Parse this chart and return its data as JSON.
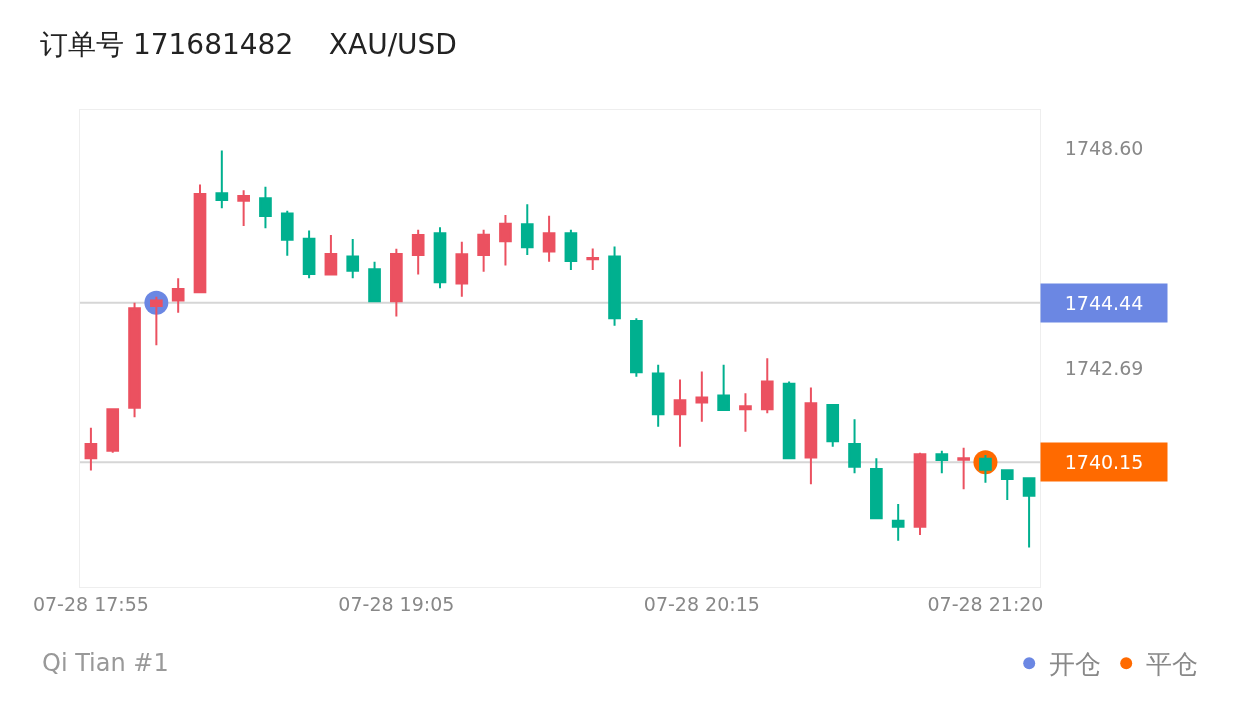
{
  "chart_data": {
    "type": "candlestick",
    "title": "订单号 171681482    XAU/USD",
    "categories": [
      "07-28 17:55",
      null,
      null,
      null,
      null,
      null,
      null,
      null,
      null,
      null,
      null,
      null,
      null,
      null,
      "07-28 19:05",
      null,
      null,
      null,
      null,
      null,
      null,
      null,
      null,
      null,
      null,
      null,
      null,
      null,
      "07-28 20:15",
      null,
      null,
      null,
      null,
      null,
      null,
      null,
      null,
      null,
      null,
      null,
      null,
      "07-28 21:20",
      null,
      null
    ],
    "ohlc": [
      [
        1740.26,
        1741.08,
        1739.93,
        1740.64
      ],
      [
        1740.46,
        1741.58,
        1740.41,
        1741.58
      ],
      [
        1741.62,
        1744.44,
        1741.36,
        1744.29
      ],
      [
        1744.35,
        1744.6,
        1743.3,
        1744.5
      ],
      [
        1744.5,
        1745.1,
        1744.17,
        1744.81
      ],
      [
        1744.72,
        1747.62,
        1744.72,
        1747.36
      ],
      [
        1747.38,
        1748.53,
        1746.98,
        1747.2
      ],
      [
        1747.18,
        1747.46,
        1746.5,
        1747.31
      ],
      [
        1747.25,
        1747.56,
        1746.44,
        1746.77
      ],
      [
        1746.84,
        1746.91,
        1745.7,
        1746.13
      ],
      [
        1746.16,
        1746.38,
        1745.1,
        1745.21
      ],
      [
        1745.2,
        1746.26,
        1745.2,
        1745.75
      ],
      [
        1745.68,
        1746.15,
        1745.1,
        1745.3
      ],
      [
        1745.34,
        1745.54,
        1744.48,
        1744.48
      ],
      [
        1744.48,
        1745.89,
        1744.07,
        1745.75
      ],
      [
        1745.72,
        1746.4,
        1745.2,
        1746.26
      ],
      [
        1746.31,
        1746.47,
        1744.83,
        1744.99
      ],
      [
        1744.96,
        1746.08,
        1744.6,
        1745.74
      ],
      [
        1745.72,
        1746.4,
        1745.27,
        1746.27
      ],
      [
        1746.09,
        1746.8,
        1745.44,
        1746.56
      ],
      [
        1746.55,
        1747.09,
        1745.72,
        1745.93
      ],
      [
        1745.82,
        1746.78,
        1745.54,
        1746.31
      ],
      [
        1746.31,
        1746.4,
        1745.32,
        1745.56
      ],
      [
        1745.61,
        1745.9,
        1745.32,
        1745.64
      ],
      [
        1745.68,
        1745.95,
        1743.82,
        1744.02
      ],
      [
        1743.95,
        1744.02,
        1742.45,
        1742.57
      ],
      [
        1742.54,
        1742.77,
        1741.11,
        1741.44
      ],
      [
        1741.44,
        1742.38,
        1740.57,
        1741.82
      ],
      [
        1741.76,
        1742.59,
        1741.24,
        1741.89
      ],
      [
        1741.95,
        1742.77,
        1741.56,
        1741.56
      ],
      [
        1741.58,
        1742.01,
        1740.97,
        1741.66
      ],
      [
        1741.58,
        1742.95,
        1741.47,
        1742.32
      ],
      [
        1742.26,
        1742.32,
        1740.26,
        1740.26
      ],
      [
        1740.28,
        1742.16,
        1739.56,
        1741.74
      ],
      [
        1741.69,
        1741.69,
        1740.57,
        1740.72
      ],
      [
        1740.64,
        1741.31,
        1739.86,
        1740.03
      ],
      [
        1739.97,
        1740.26,
        1738.65,
        1738.65
      ],
      [
        1738.58,
        1739.03,
        1738.04,
        1738.42
      ],
      [
        1738.42,
        1740.41,
        1738.2,
        1740.37
      ],
      [
        1740.37,
        1740.46,
        1739.86,
        1740.21
      ],
      [
        1740.22,
        1740.54,
        1739.43,
        1740.26
      ],
      [
        1740.25,
        1740.35,
        1739.6,
        1739.95
      ],
      [
        1739.94,
        1739.94,
        1739.14,
        1739.7
      ],
      [
        1739.72,
        1739.72,
        1737.86,
        1739.25
      ]
    ],
    "colors": [
      "#eb5160",
      "#eb5160",
      "#eb5160",
      "#eb5160",
      "#eb5160",
      "#eb5160",
      "#00b08f",
      "#eb5160",
      "#00b08f",
      "#00b08f",
      "#00b08f",
      "#eb5160",
      "#00b08f",
      "#00b08f",
      "#eb5160",
      "#eb5160",
      "#00b08f",
      "#eb5160",
      "#eb5160",
      "#eb5160",
      "#00b08f",
      "#eb5160",
      "#00b08f",
      "#eb5160",
      "#00b08f",
      "#00b08f",
      "#00b08f",
      "#eb5160",
      "#eb5160",
      "#00b08f",
      "#eb5160",
      "#eb5160",
      "#00b08f",
      "#eb5160",
      "#00b08f",
      "#00b08f",
      "#00b08f",
      "#00b08f",
      "#eb5160",
      "#00b08f",
      "#eb5160",
      "#00b08f",
      "#00b08f",
      "#00b08f"
    ],
    "series": [
      {
        "name": "开仓",
        "type": "scatter",
        "color": "#6b87e3",
        "values": [
          null,
          null,
          null,
          1744.44,
          null,
          null,
          null,
          null,
          null,
          null,
          null,
          null,
          null,
          null,
          null,
          null,
          null,
          null,
          null,
          null,
          null,
          null,
          null,
          null,
          null,
          null,
          null,
          null,
          null,
          null,
          null,
          null,
          null,
          null,
          null,
          null,
          null,
          null,
          null,
          null,
          null,
          null,
          null,
          null
        ]
      },
      {
        "name": "平仓",
        "type": "scatter",
        "color": "#ff6a00",
        "values": [
          null,
          null,
          null,
          null,
          null,
          null,
          null,
          null,
          null,
          null,
          null,
          null,
          null,
          null,
          null,
          null,
          null,
          null,
          null,
          null,
          null,
          null,
          null,
          null,
          null,
          null,
          null,
          null,
          null,
          null,
          null,
          null,
          null,
          null,
          null,
          null,
          null,
          null,
          null,
          null,
          null,
          1740.15,
          null,
          null
        ]
      }
    ],
    "ref_lines": [
      {
        "axis": "y",
        "value": 1744.44,
        "label": "1744.44",
        "color": "#d6d6d6"
      },
      {
        "axis": "y",
        "value": 1740.15,
        "label": "1740.15",
        "color": "#d6d6d6"
      }
    ],
    "ylim": [
      1736.8,
      1749.62
    ],
    "yticks": [
      {
        "value": 1748.6,
        "label": "1748.60"
      },
      {
        "value": 1742.69,
        "label": "1742.69"
      }
    ],
    "marker": "circle",
    "legend": "bottom right",
    "annotations": [
      "Qi Tian #1"
    ]
  }
}
